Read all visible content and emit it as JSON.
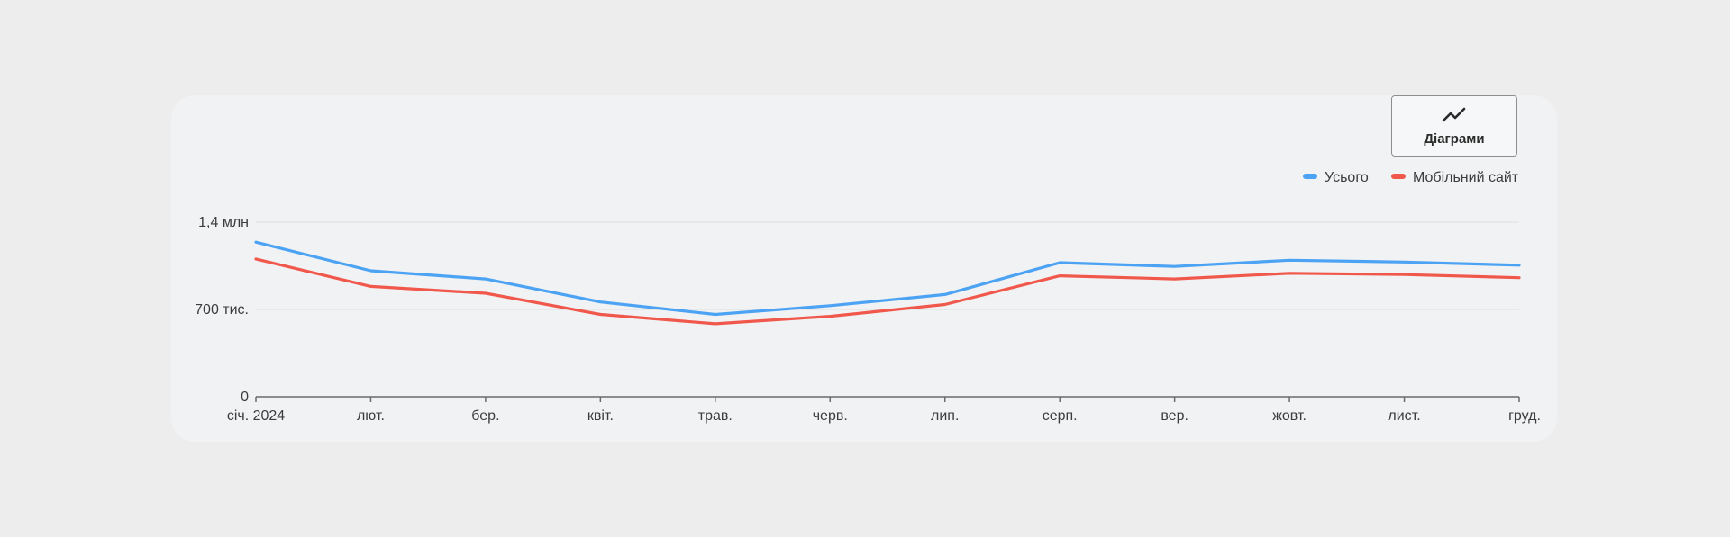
{
  "toolbar": {
    "charts_button_label": "Діаграми",
    "charts_button_icon": "trending-up-icon"
  },
  "chart_data": {
    "type": "line",
    "categories": [
      "січ. 2024",
      "лют.",
      "бер.",
      "квіт.",
      "трав.",
      "черв.",
      "лип.",
      "серп.",
      "вер.",
      "жовт.",
      "лист.",
      "груд."
    ],
    "series": [
      {
        "name": "Усього",
        "color": "#4ca3f4",
        "values": [
          1240000,
          1010000,
          945000,
          760000,
          660000,
          730000,
          820000,
          1075000,
          1045000,
          1095000,
          1080000,
          1055000
        ]
      },
      {
        "name": "Мобільний сайт",
        "color": "#f1584c",
        "values": [
          1105000,
          885000,
          830000,
          660000,
          585000,
          645000,
          740000,
          970000,
          945000,
          990000,
          980000,
          955000
        ]
      }
    ],
    "y_ticks": [
      {
        "value": 0,
        "label": "0"
      },
      {
        "value": 700000,
        "label": "700 тис."
      },
      {
        "value": 1400000,
        "label": "1,4 млн"
      }
    ],
    "ylim": [
      0,
      1400000
    ],
    "grid": true,
    "legend_position": "top-right"
  }
}
